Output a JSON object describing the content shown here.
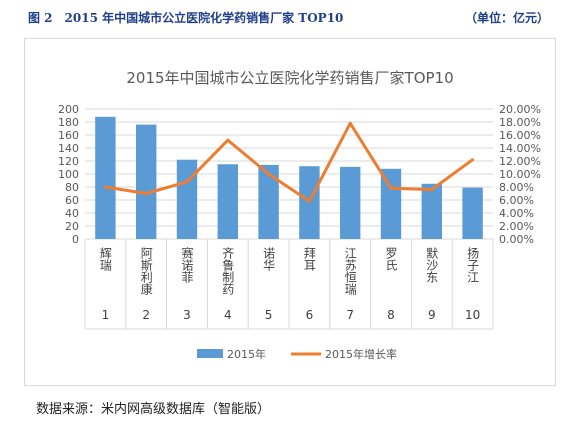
{
  "header": {
    "figure_title": "图 2　2015 年中国城市公立医院化学药销售厂家 TOP10",
    "unit": "（单位：亿元）"
  },
  "source_note": "数据来源：米内网高级数据库（智能版）",
  "colors": {
    "bar": "#5b9bd5",
    "line": "#ed7d31",
    "grid": "#d9d9d9",
    "text": "#595959"
  },
  "chart_data": {
    "type": "bar",
    "title": "2015年中国城市公立医院化学药销售厂家TOP10",
    "ranks": [
      "1",
      "2",
      "3",
      "4",
      "5",
      "6",
      "7",
      "8",
      "9",
      "10"
    ],
    "categories": [
      "辉瑞",
      "阿斯利康",
      "赛诺菲",
      "齐鲁制药",
      "诺华",
      "拜耳",
      "江苏恒瑞",
      "罗氏",
      "默沙东",
      "扬子江"
    ],
    "series": [
      {
        "name": "2015年",
        "type": "bar",
        "axis": "left",
        "values": [
          188,
          176,
          122,
          115,
          114,
          112,
          111,
          108,
          85,
          79
        ]
      },
      {
        "name": "2015年增长率",
        "type": "line",
        "axis": "right",
        "values": [
          8.0,
          7.0,
          8.8,
          15.2,
          10.0,
          5.8,
          17.8,
          7.8,
          7.6,
          12.2
        ]
      }
    ],
    "ylim_left": [
      0,
      200
    ],
    "yticks_left": [
      "0",
      "20",
      "40",
      "60",
      "80",
      "100",
      "120",
      "140",
      "160",
      "180",
      "200"
    ],
    "ylim_right": [
      0,
      20
    ],
    "yticks_right": [
      "0.00%",
      "2.00%",
      "4.00%",
      "6.00%",
      "8.00%",
      "10.00%",
      "12.00%",
      "14.00%",
      "16.00%",
      "18.00%",
      "20.00%"
    ],
    "grid": true,
    "legend_position": "bottom"
  }
}
